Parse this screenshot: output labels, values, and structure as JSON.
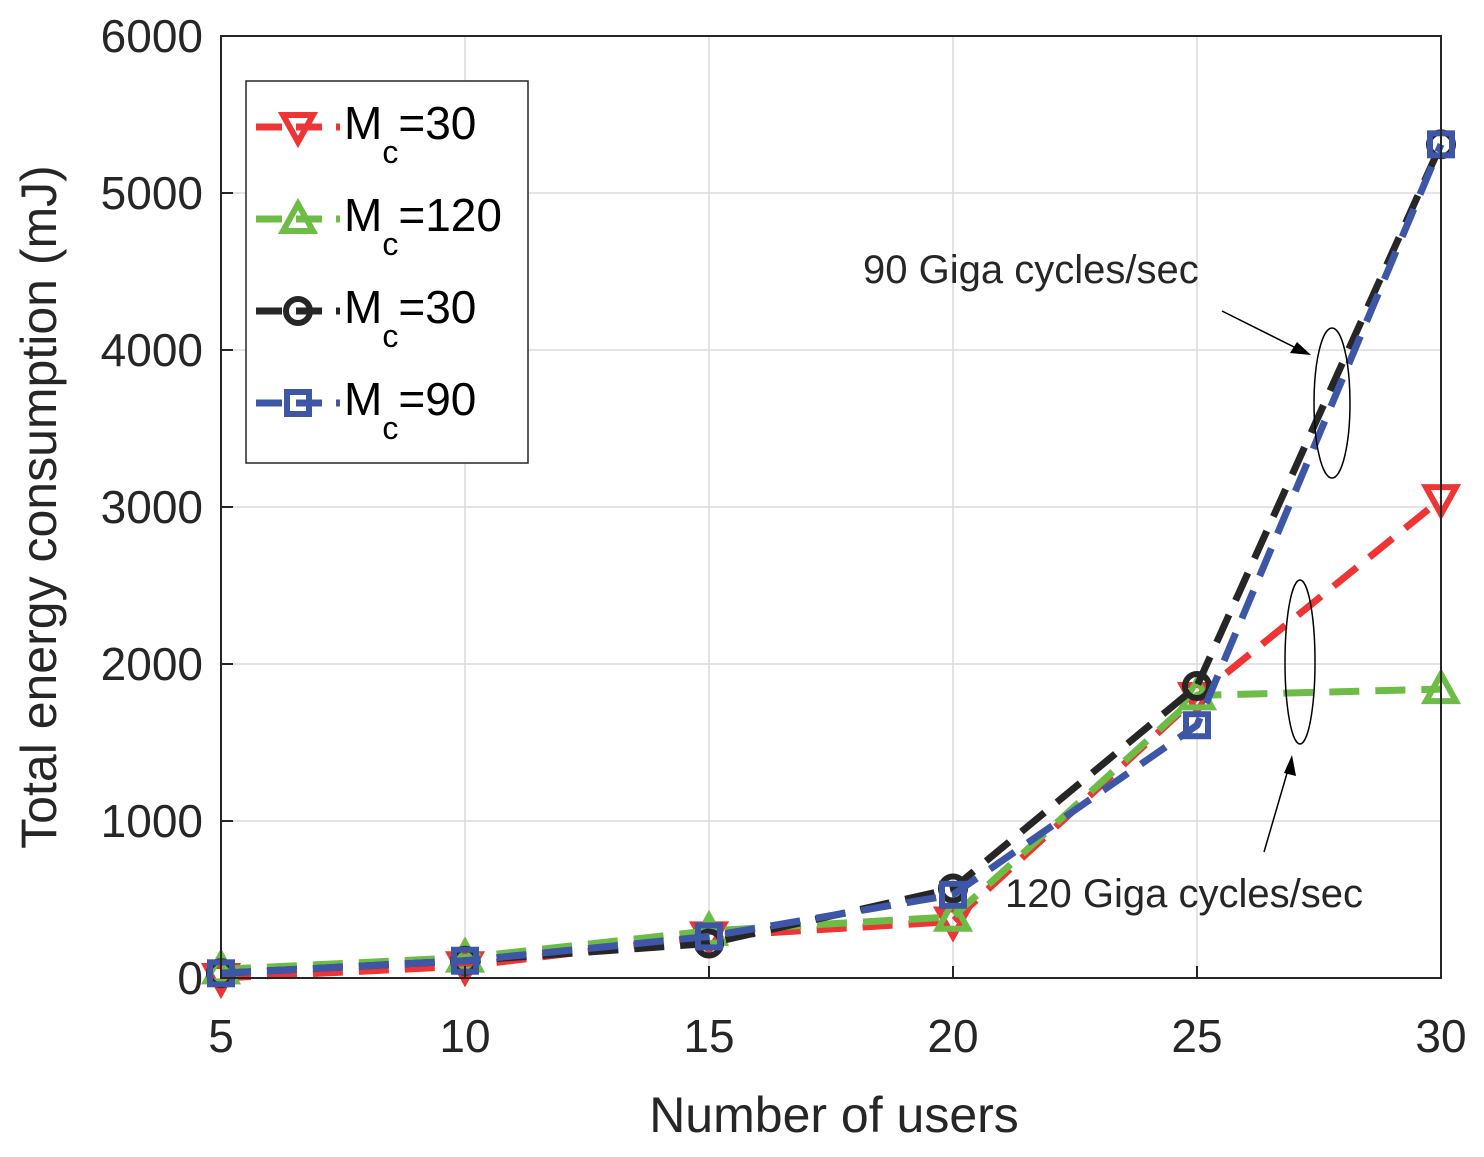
{
  "chart_data": {
    "type": "line",
    "title": "",
    "xlabel": "Number of users",
    "ylabel": "Total energy consumption (mJ)",
    "x": [
      5,
      10,
      15,
      20,
      25,
      30
    ],
    "xlim": [
      5,
      30
    ],
    "ylim": [
      0,
      6000
    ],
    "xticks": [
      "5",
      "10",
      "15",
      "20",
      "25",
      "30"
    ],
    "yticks": [
      "0",
      "1000",
      "2000",
      "3000",
      "4000",
      "5000",
      "6000"
    ],
    "grid": true,
    "legend_position": "top-left",
    "series": [
      {
        "name": "M",
        "sub": "c",
        "suffix": "=30",
        "color": "#ee3434",
        "marker": "triangle-down",
        "values": [
          0,
          75,
          265,
          360,
          1790,
          3050
        ]
      },
      {
        "name": "M",
        "sub": "c",
        "suffix": "=120",
        "color": "#6dbc45",
        "marker": "triangle-up",
        "values": [
          55,
          130,
          300,
          390,
          1800,
          1840
        ]
      },
      {
        "name": "M",
        "sub": "c",
        "suffix": "=30",
        "color": "#262626",
        "marker": "circle",
        "values": [
          30,
          110,
          220,
          570,
          1860,
          5310
        ]
      },
      {
        "name": "M",
        "sub": "c",
        "suffix": "=90",
        "color": "#3d56a6",
        "marker": "square",
        "values": [
          30,
          110,
          265,
          530,
          1610,
          5310
        ]
      }
    ],
    "annotations": [
      {
        "text": "90 Giga cycles/sec"
      },
      {
        "text": "120 Giga cycles/sec"
      }
    ]
  }
}
